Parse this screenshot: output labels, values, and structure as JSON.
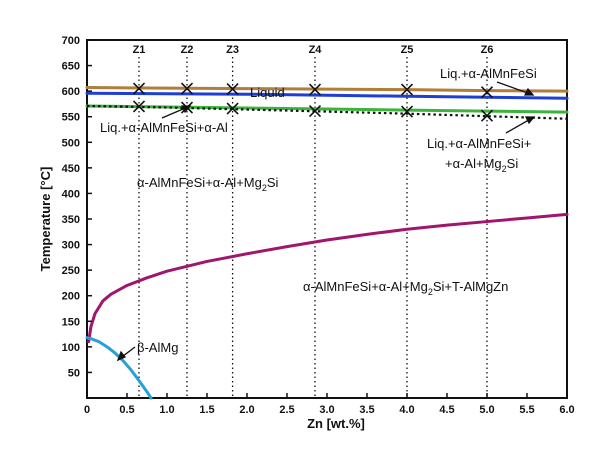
{
  "chart_data": {
    "type": "line",
    "xlabel": "Zn [wt.%]",
    "ylabel": "Temperature [°C]",
    "xlim": [
      0,
      6.0
    ],
    "ylim": [
      0,
      700
    ],
    "x_ticks": [
      "0",
      "0.5",
      "1.0",
      "1.5",
      "2.0",
      "2.5",
      "3.0",
      "3.5",
      "4.0",
      "4.5",
      "5.0",
      "5.5",
      "6.0"
    ],
    "y_ticks": [
      "50",
      "100",
      "150",
      "200",
      "250",
      "300",
      "350",
      "400",
      "450",
      "500",
      "550",
      "600",
      "650",
      "700"
    ],
    "grid": false,
    "colors": {
      "brown": "#b07d3a",
      "blue": "#1f3fd4",
      "green": "#3cb43c",
      "dotted": "#111111",
      "purple": "#a0156e",
      "cyan": "#27a0d8"
    },
    "series": [
      {
        "key": "brown",
        "x": [
          0,
          1,
          2,
          3,
          4,
          5,
          6
        ],
        "y": [
          607,
          606,
          605,
          604,
          603,
          601,
          600
        ]
      },
      {
        "key": "blue",
        "x": [
          0,
          1,
          2,
          3,
          4,
          5,
          6
        ],
        "y": [
          596,
          595,
          594,
          592,
          590,
          588,
          586
        ]
      },
      {
        "key": "green",
        "x": [
          0,
          1,
          2,
          3,
          4,
          5,
          6
        ],
        "y": [
          571,
          569,
          567,
          565,
          563,
          561,
          559
        ]
      },
      {
        "key": "dotted",
        "x": [
          0,
          1,
          2,
          3,
          4,
          5,
          6
        ],
        "y": [
          571,
          568,
          564,
          560,
          556,
          551,
          546
        ]
      },
      {
        "key": "purple",
        "x": [
          0.02,
          0.05,
          0.1,
          0.2,
          0.3,
          0.5,
          0.75,
          1.0,
          1.5,
          2.0,
          2.5,
          3.0,
          3.5,
          4.0,
          4.5,
          5.0,
          5.5,
          6.0
        ],
        "y": [
          110,
          140,
          165,
          190,
          203,
          220,
          235,
          248,
          267,
          282,
          296,
          309,
          320,
          330,
          338,
          345,
          352,
          359
        ]
      },
      {
        "key": "cyan",
        "x": [
          0.0,
          0.05,
          0.15,
          0.25,
          0.35,
          0.45,
          0.55,
          0.65,
          0.75,
          0.8
        ],
        "y": [
          118,
          116,
          110,
          100,
          88,
          73,
          55,
          34,
          12,
          0
        ]
      }
    ],
    "zones": [
      {
        "label": "Z1",
        "x": 0.65,
        "marks": [
          605,
          570
        ]
      },
      {
        "label": "Z2",
        "x": 1.25,
        "marks": [
          605,
          568
        ]
      },
      {
        "label": "Z3",
        "x": 1.82,
        "marks": [
          604,
          566
        ]
      },
      {
        "label": "Z4",
        "x": 2.85,
        "marks": [
          603,
          561
        ]
      },
      {
        "label": "Z5",
        "x": 4.0,
        "marks": [
          603,
          560
        ]
      },
      {
        "label": "Z6",
        "x": 5.0,
        "marks": [
          598,
          552
        ]
      }
    ],
    "labels": {
      "liquid": "Liquid",
      "liq_amnfesi": "Liq.+α-AlMnFeSi",
      "liq_amnfesi_al": "Liq.+α-AlMnFeSi+α-Al",
      "liq_mg2si_line1": "Liq.+α-AlMnFeSi+",
      "liq_mg2si_line2_pre": "+α-Al+Mg",
      "liq_mg2si_line2_sub": "2",
      "liq_mg2si_line2_post": "Si",
      "amnfesi_al_mg2si_pre": "α-AlMnFeSi+α-Al+Mg",
      "amnfesi_al_mg2si_sub": "2",
      "amnfesi_al_mg2si_post": "Si",
      "t_phase_pre": "α-AlMnFeSi+α-Al+Mg",
      "t_phase_sub": "2",
      "t_phase_post": "Si+T-AlMgZn",
      "beta": "β-AlMg"
    }
  }
}
